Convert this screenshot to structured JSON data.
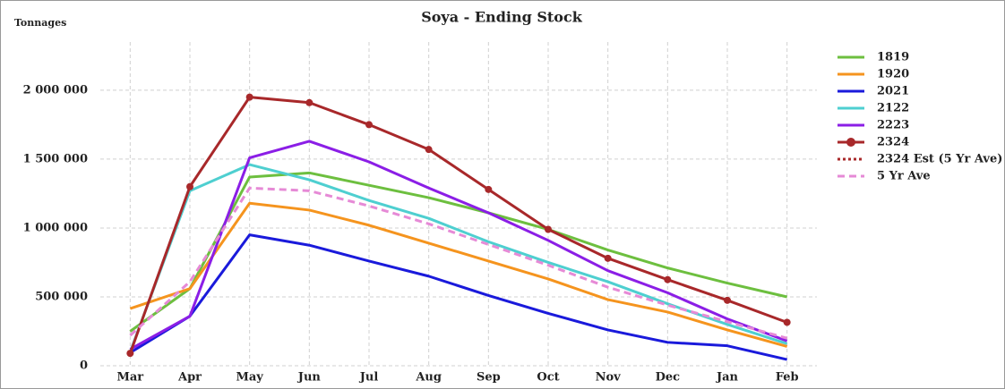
{
  "chart_data": {
    "type": "line",
    "title": "Soya - Ending Stock",
    "y_label": "Tonnages",
    "categories": [
      "Mar",
      "Apr",
      "May",
      "Jun",
      "Jul",
      "Aug",
      "Sep",
      "Oct",
      "Nov",
      "Dec",
      "Jan",
      "Feb"
    ],
    "series": [
      {
        "name": "1819",
        "color": "#6dbf3f",
        "values": [
          250000,
          560000,
          1370000,
          1400000,
          1310000,
          1220000,
          1110000,
          990000,
          840000,
          710000,
          600000,
          500000
        ]
      },
      {
        "name": "1920",
        "color": "#f5941e",
        "values": [
          415000,
          560000,
          1180000,
          1130000,
          1020000,
          890000,
          760000,
          630000,
          480000,
          390000,
          260000,
          140000
        ]
      },
      {
        "name": "2021",
        "color": "#1a1adb",
        "values": [
          95000,
          360000,
          950000,
          875000,
          760000,
          650000,
          510000,
          380000,
          260000,
          170000,
          145000,
          45000
        ]
      },
      {
        "name": "2122",
        "color": "#4ecfd0",
        "values": [
          100000,
          1270000,
          1460000,
          1350000,
          1200000,
          1070000,
          900000,
          750000,
          610000,
          450000,
          300000,
          160000
        ]
      },
      {
        "name": "2223",
        "color": "#8b1ee6",
        "values": [
          120000,
          360000,
          1510000,
          1630000,
          1480000,
          1290000,
          1110000,
          910000,
          690000,
          530000,
          340000,
          180000
        ]
      },
      {
        "name": "2324",
        "color": "#a8282a",
        "marker": true,
        "values": [
          90000,
          1300000,
          1950000,
          1910000,
          1750000,
          1570000,
          1280000,
          990000,
          780000,
          625000,
          475000,
          315000
        ]
      },
      {
        "name": "2324 Est (5 Yr Ave)",
        "color": "#a8282a",
        "dash": "dotted",
        "values": [
          null,
          null,
          null,
          null,
          null,
          null,
          null,
          null,
          null,
          null,
          null,
          null
        ]
      },
      {
        "name": "5 Yr Ave",
        "color": "#e68ad6",
        "dash": "dashed",
        "values": [
          220000,
          610000,
          1290000,
          1270000,
          1160000,
          1030000,
          880000,
          730000,
          570000,
          440000,
          320000,
          200000
        ]
      }
    ],
    "ylim": [
      0,
      2350000
    ],
    "yticks": [
      0,
      {
        "value": 500000,
        "label": "500 000"
      },
      {
        "value": 1000000,
        "label": "1 000 000"
      },
      {
        "value": 1500000,
        "label": "1 500 000"
      },
      {
        "value": 2000000,
        "label": "2 000 000"
      }
    ],
    "grid": true,
    "legend": "right"
  }
}
